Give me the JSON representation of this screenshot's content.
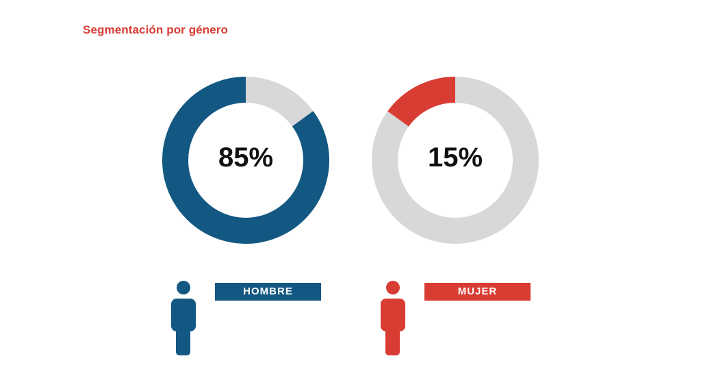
{
  "title": "Segmentación por género",
  "colors": {
    "title": "#d83c33",
    "hombre": "#135882",
    "mujer": "#d83c33",
    "track": "#d8d8d8"
  },
  "chart_data": [
    {
      "type": "pie",
      "variant": "donut",
      "category": "HOMBRE",
      "value": 85,
      "remainder": 15,
      "label": "85%",
      "color": "#135882",
      "track_color": "#d8d8d8"
    },
    {
      "type": "pie",
      "variant": "donut",
      "category": "MUJER",
      "value": 15,
      "remainder": 85,
      "label": "15%",
      "color": "#d83c33",
      "track_color": "#d8d8d8"
    }
  ],
  "icons": {
    "hombre": "person-icon",
    "mujer": "person-icon"
  }
}
